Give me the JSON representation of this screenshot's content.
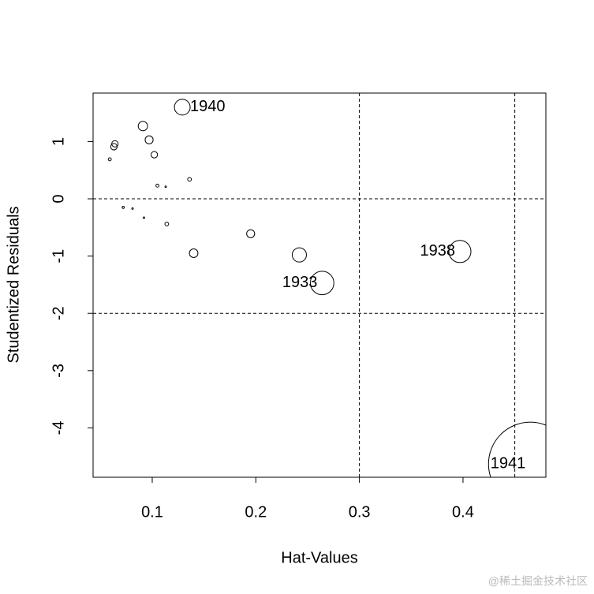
{
  "chart_data": {
    "type": "bubble",
    "x_label": "Hat-Values",
    "y_label": "Studentized Residuals",
    "x": [
      0.129,
      0.091,
      0.097,
      0.064,
      0.063,
      0.102,
      0.059,
      0.105,
      0.113,
      0.136,
      0.072,
      0.081,
      0.092,
      0.114,
      0.195,
      0.14,
      0.242,
      0.264,
      0.397,
      0.465
    ],
    "values": [
      1.6,
      1.27,
      1.03,
      0.96,
      0.91,
      0.77,
      0.69,
      0.23,
      0.21,
      0.34,
      -0.15,
      -0.17,
      -0.33,
      -0.44,
      -0.61,
      -0.95,
      -0.98,
      -1.47,
      -0.92,
      -4.63
    ],
    "sizes": [
      0.054,
      0.019,
      0.014,
      0.009,
      0.009,
      0.009,
      0.002,
      0.002,
      0.0005,
      0.003,
      0.001,
      0.0005,
      0.0005,
      0.003,
      0.014,
      0.016,
      0.044,
      0.12,
      0.106,
      1.52
    ],
    "point_labels": [
      "1940",
      null,
      null,
      null,
      null,
      null,
      null,
      null,
      null,
      null,
      null,
      null,
      null,
      null,
      null,
      null,
      null,
      "1933",
      "1938",
      "1941"
    ],
    "xlim": [
      0.0429,
      0.48
    ],
    "ylim": [
      -4.862,
      1.846
    ],
    "xticks": [
      0.1,
      0.2,
      0.3,
      0.4
    ],
    "yticks": [
      -4,
      -3,
      -2,
      -1,
      0,
      1
    ],
    "h_lines": [
      -2,
      0,
      2
    ],
    "v_lines": [
      0.3,
      0.45
    ],
    "color": "#000000"
  },
  "watermark": "@稀土掘金技术社区"
}
